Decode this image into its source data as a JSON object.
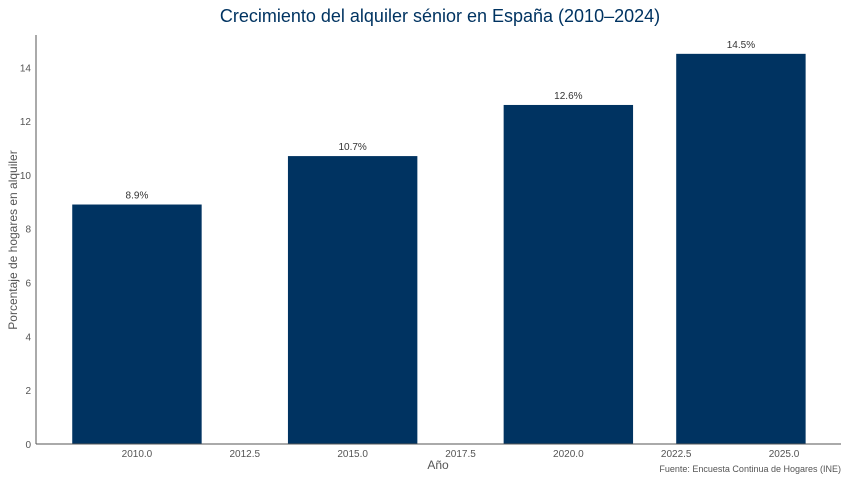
{
  "chart_data": {
    "type": "bar",
    "title": "Crecimiento del alquiler sénior en España (2010–2024)",
    "xlabel": "Año",
    "ylabel": "Porcentaje de hogares en alquiler",
    "x": [
      2010,
      2015,
      2020,
      2024
    ],
    "values": [
      8.9,
      10.7,
      12.6,
      14.5
    ],
    "data_labels": [
      "8.9%",
      "10.7%",
      "12.6%",
      "14.5%"
    ],
    "xlim": [
      2007.66,
      2026.32
    ],
    "ylim": [
      0,
      15.2
    ],
    "xticks": [
      2010.0,
      2012.5,
      2015.0,
      2017.5,
      2020.0,
      2022.5,
      2025.0
    ],
    "xtick_labels": [
      "2010.0",
      "2012.5",
      "2015.0",
      "2017.5",
      "2020.0",
      "2022.5",
      "2025.0"
    ],
    "yticks": [
      0,
      2,
      4,
      6,
      8,
      10,
      12,
      14
    ],
    "ytick_labels": [
      "0",
      "2",
      "4",
      "6",
      "8",
      "10",
      "12",
      "14"
    ],
    "bar_width_years": 3,
    "grid": false,
    "bar_color": "#003361",
    "title_color": "#003361",
    "source": "Fuente: Encuesta Continua de Hogares (INE)"
  }
}
